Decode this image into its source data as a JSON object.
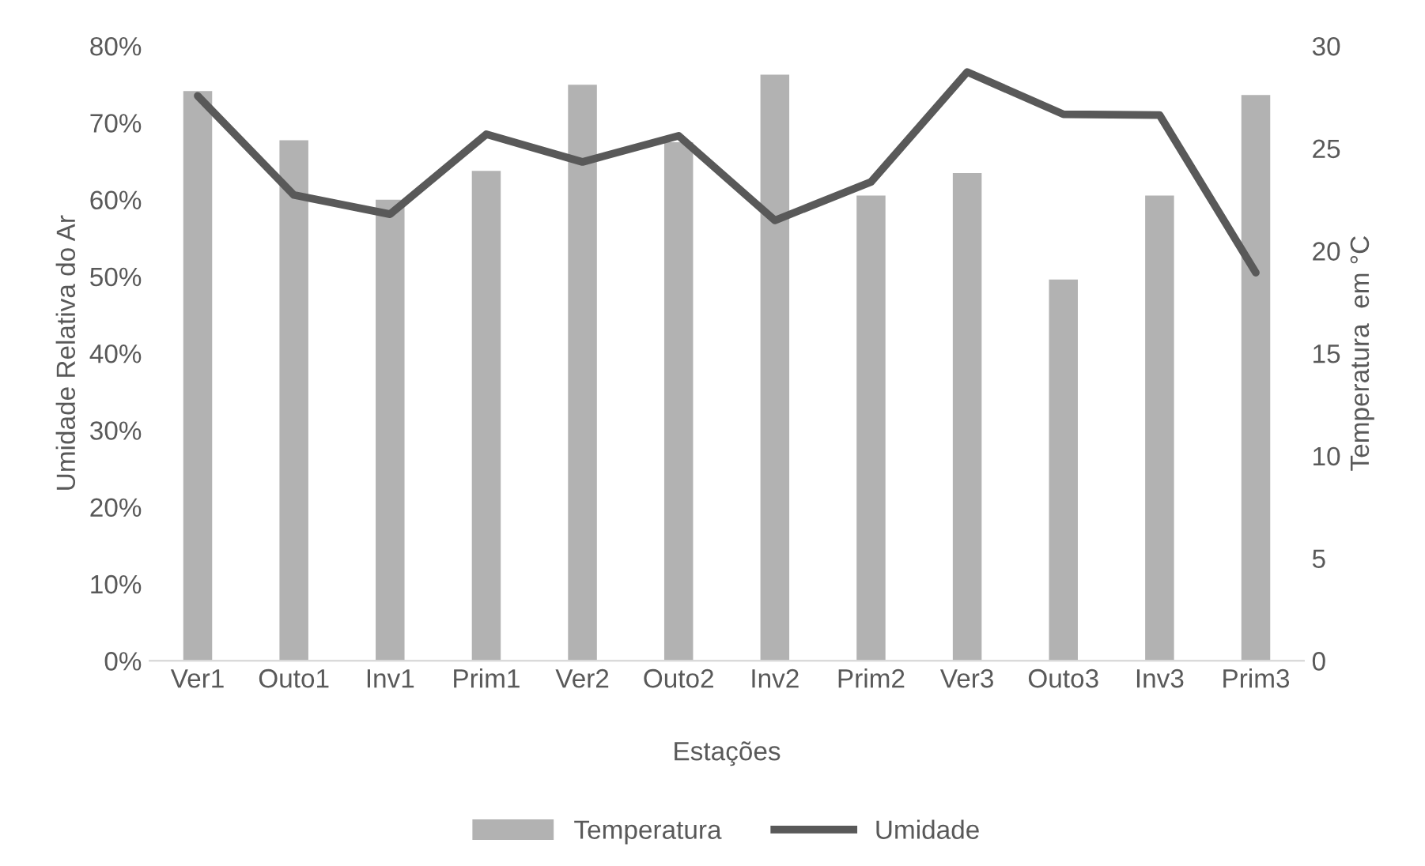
{
  "chart_data": {
    "type": "bar",
    "xlabel": "Estações",
    "ylabel": "Umidade Relativa do Ar",
    "y2label": "Temperatura  em °C",
    "categories": [
      "Ver1",
      "Outo1",
      "Inv1",
      "Prim1",
      "Ver2",
      "Outo2",
      "Inv2",
      "Prim2",
      "Ver3",
      "Outo3",
      "Inv3",
      "Prim3"
    ],
    "series": [
      {
        "name": "Temperatura",
        "axis": "y2",
        "color": "#b2b2b2",
        "values": [
          27.8,
          25.4,
          22.5,
          23.9,
          28.1,
          25.3,
          28.6,
          22.7,
          23.8,
          18.6,
          22.7,
          27.6
        ]
      },
      {
        "name": "Umidade",
        "type": "line",
        "axis": "y",
        "color": "#595959",
        "values": [
          73.5,
          60.6,
          58.1,
          68.5,
          64.9,
          68.3,
          57.3,
          62.3,
          76.6,
          71.1,
          71.0,
          50.5
        ]
      }
    ],
    "ylim": [
      0,
      80
    ],
    "yticks": [
      {
        "value": 0,
        "label": "0%"
      },
      {
        "value": 10,
        "label": "10%"
      },
      {
        "value": 20,
        "label": "20%"
      },
      {
        "value": 30,
        "label": "30%"
      },
      {
        "value": 40,
        "label": "40%"
      },
      {
        "value": 50,
        "label": "50%"
      },
      {
        "value": 60,
        "label": "60%"
      },
      {
        "value": 70,
        "label": "70%"
      },
      {
        "value": 80,
        "label": "80%"
      }
    ],
    "y2lim": [
      0,
      30
    ],
    "y2ticks": [
      0,
      5,
      10,
      15,
      20,
      25,
      30
    ],
    "grid": false,
    "legend": "bottom",
    "marker": "none",
    "line_style": "solid"
  }
}
